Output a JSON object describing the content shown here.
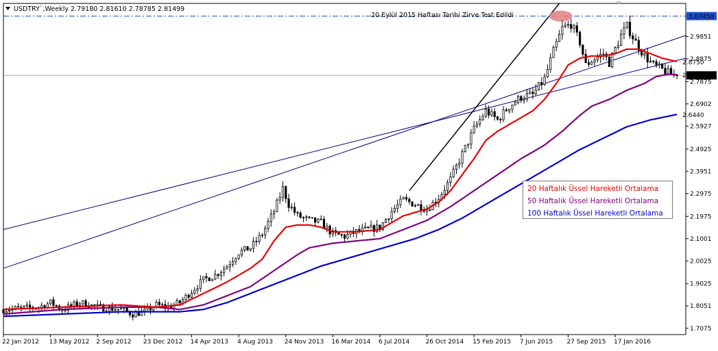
{
  "header": {
    "symbol": "USDTRY`,Weekly",
    "ohlc": "2.79180 2.81610 2.78785 2.81499"
  },
  "annotation": {
    "peak_note": "20 Eylül 2015 Haftası Tarihi Zirve Test Edildi"
  },
  "legend": {
    "ema20": "20 Haftalık Üssel Hareketli Ortalama",
    "ema50": "50 Haftalık Üssel Hareketli Ortalama",
    "ema100": "100 Haftalık Üssel Hareketli Ortalama"
  },
  "colors": {
    "ema20": "#e60000",
    "ema50": "#800080",
    "ema100": "#0000cc",
    "candles": "#000000",
    "trendline": "#000080",
    "peak_marker": "#e08080"
  },
  "chart_data": {
    "type": "candlestick",
    "timeframe": "weekly",
    "y_range": [
      1.68,
      3.13
    ],
    "y_ticks": [
      "3.0745",
      "2.9851",
      "2.8875",
      "2.7875",
      "2.6902",
      "2.5927",
      "2.4925",
      "2.3951",
      "2.2975",
      "2.1975",
      "2.1001",
      "2.0025",
      "1.9025",
      "1.8051",
      "1.7075"
    ],
    "x_labels": [
      "22 Jan 2012",
      "13 May 2012",
      "2 Sep 2012",
      "23 Dec 2012",
      "14 Apr 2013",
      "4 Aug 2013",
      "24 Nov 2013",
      "16 Mar 2014",
      "6 Jul 2014",
      "26 Oct 2014",
      "15 Feb 2015",
      "7 Jun 2015",
      "27 Sep 2015",
      "17 Jan 2016"
    ],
    "x_range": [
      0,
      232
    ],
    "x_label_index_step": 16,
    "highlighted_prices": [
      {
        "label": "3.07450",
        "value": 3.0745,
        "style": "dash-dot"
      },
      {
        "label": "2.81499",
        "value": 2.81499,
        "style": "current"
      }
    ],
    "ema_end_labels": [
      {
        "series": "ema20",
        "label": "2.8750",
        "value": 2.875
      },
      {
        "series": "ema100",
        "label": "2.6440",
        "value": 2.644
      },
      {
        "series": "ema50",
        "label": "2.8180",
        "value": 2.818
      }
    ],
    "price_anchors": [
      [
        0,
        1.79
      ],
      [
        12,
        1.8
      ],
      [
        16,
        1.82
      ],
      [
        20,
        1.79
      ],
      [
        26,
        1.82
      ],
      [
        32,
        1.8
      ],
      [
        40,
        1.79
      ],
      [
        44,
        1.77
      ],
      [
        48,
        1.78
      ],
      [
        52,
        1.81
      ],
      [
        56,
        1.8
      ],
      [
        60,
        1.82
      ],
      [
        64,
        1.87
      ],
      [
        68,
        1.92
      ],
      [
        72,
        1.94
      ],
      [
        76,
        1.98
      ],
      [
        80,
        2.04
      ],
      [
        84,
        2.06
      ],
      [
        88,
        2.12
      ],
      [
        92,
        2.22
      ],
      [
        95,
        2.32
      ],
      [
        97,
        2.25
      ],
      [
        100,
        2.2
      ],
      [
        104,
        2.18
      ],
      [
        108,
        2.17
      ],
      [
        112,
        2.12
      ],
      [
        116,
        2.11
      ],
      [
        120,
        2.13
      ],
      [
        124,
        2.14
      ],
      [
        128,
        2.15
      ],
      [
        132,
        2.22
      ],
      [
        136,
        2.27
      ],
      [
        140,
        2.25
      ],
      [
        144,
        2.23
      ],
      [
        148,
        2.28
      ],
      [
        152,
        2.36
      ],
      [
        156,
        2.47
      ],
      [
        160,
        2.58
      ],
      [
        164,
        2.66
      ],
      [
        168,
        2.62
      ],
      [
        172,
        2.68
      ],
      [
        176,
        2.72
      ],
      [
        180,
        2.73
      ],
      [
        184,
        2.8
      ],
      [
        187,
        2.92
      ],
      [
        190,
        3.02
      ],
      [
        193,
        3.04
      ],
      [
        196,
        2.96
      ],
      [
        198,
        2.86
      ],
      [
        200,
        2.88
      ],
      [
        204,
        2.91
      ],
      [
        206,
        2.87
      ],
      [
        210,
        2.99
      ],
      [
        212,
        3.03
      ],
      [
        215,
        2.96
      ],
      [
        218,
        2.9
      ],
      [
        221,
        2.86
      ],
      [
        224,
        2.84
      ],
      [
        227,
        2.82
      ],
      [
        229,
        2.81
      ]
    ],
    "ema_anchors": {
      "ema20": [
        [
          0,
          1.79
        ],
        [
          20,
          1.8
        ],
        [
          40,
          1.81
        ],
        [
          52,
          1.8
        ],
        [
          60,
          1.81
        ],
        [
          68,
          1.86
        ],
        [
          76,
          1.91
        ],
        [
          84,
          1.97
        ],
        [
          88,
          2.01
        ],
        [
          92,
          2.09
        ],
        [
          96,
          2.15
        ],
        [
          100,
          2.16
        ],
        [
          104,
          2.16
        ],
        [
          108,
          2.15
        ],
        [
          112,
          2.13
        ],
        [
          120,
          2.13
        ],
        [
          128,
          2.14
        ],
        [
          136,
          2.2
        ],
        [
          144,
          2.23
        ],
        [
          148,
          2.26
        ],
        [
          152,
          2.31
        ],
        [
          156,
          2.38
        ],
        [
          160,
          2.45
        ],
        [
          164,
          2.53
        ],
        [
          168,
          2.57
        ],
        [
          172,
          2.6
        ],
        [
          176,
          2.63
        ],
        [
          180,
          2.66
        ],
        [
          184,
          2.71
        ],
        [
          188,
          2.78
        ],
        [
          192,
          2.86
        ],
        [
          196,
          2.89
        ],
        [
          200,
          2.9
        ],
        [
          204,
          2.9
        ],
        [
          208,
          2.91
        ],
        [
          212,
          2.93
        ],
        [
          216,
          2.93
        ],
        [
          220,
          2.91
        ],
        [
          224,
          2.89
        ],
        [
          229,
          2.875
        ]
      ],
      "ema50": [
        [
          0,
          1.77
        ],
        [
          20,
          1.79
        ],
        [
          40,
          1.8
        ],
        [
          52,
          1.8
        ],
        [
          60,
          1.79
        ],
        [
          68,
          1.81
        ],
        [
          76,
          1.85
        ],
        [
          84,
          1.89
        ],
        [
          92,
          1.96
        ],
        [
          100,
          2.03
        ],
        [
          104,
          2.06
        ],
        [
          108,
          2.07
        ],
        [
          112,
          2.08
        ],
        [
          120,
          2.09
        ],
        [
          128,
          2.1
        ],
        [
          136,
          2.14
        ],
        [
          144,
          2.18
        ],
        [
          152,
          2.24
        ],
        [
          160,
          2.31
        ],
        [
          168,
          2.38
        ],
        [
          176,
          2.45
        ],
        [
          184,
          2.51
        ],
        [
          190,
          2.57
        ],
        [
          196,
          2.64
        ],
        [
          200,
          2.68
        ],
        [
          206,
          2.71
        ],
        [
          212,
          2.75
        ],
        [
          218,
          2.78
        ],
        [
          222,
          2.81
        ],
        [
          226,
          2.82
        ],
        [
          229,
          2.818
        ]
      ],
      "ema100": [
        [
          0,
          1.76
        ],
        [
          20,
          1.77
        ],
        [
          40,
          1.78
        ],
        [
          52,
          1.78
        ],
        [
          60,
          1.78
        ],
        [
          68,
          1.79
        ],
        [
          76,
          1.82
        ],
        [
          84,
          1.86
        ],
        [
          92,
          1.9
        ],
        [
          100,
          1.94
        ],
        [
          108,
          1.98
        ],
        [
          116,
          2.01
        ],
        [
          124,
          2.04
        ],
        [
          132,
          2.07
        ],
        [
          140,
          2.1
        ],
        [
          148,
          2.14
        ],
        [
          156,
          2.19
        ],
        [
          164,
          2.25
        ],
        [
          172,
          2.31
        ],
        [
          180,
          2.37
        ],
        [
          188,
          2.43
        ],
        [
          196,
          2.49
        ],
        [
          204,
          2.54
        ],
        [
          212,
          2.59
        ],
        [
          220,
          2.62
        ],
        [
          229,
          2.644
        ]
      ]
    },
    "trendlines": [
      {
        "from": [
          0,
          2.14
        ],
        "to": [
          232,
          2.89
        ]
      },
      {
        "from": [
          0,
          1.97
        ],
        "to": [
          232,
          2.99
        ]
      },
      {
        "from": [
          138,
          2.31
        ],
        "to": [
          189,
          3.13
        ],
        "bold": true
      }
    ],
    "peak_marker": {
      "x": 189,
      "y": 3.0745
    }
  }
}
